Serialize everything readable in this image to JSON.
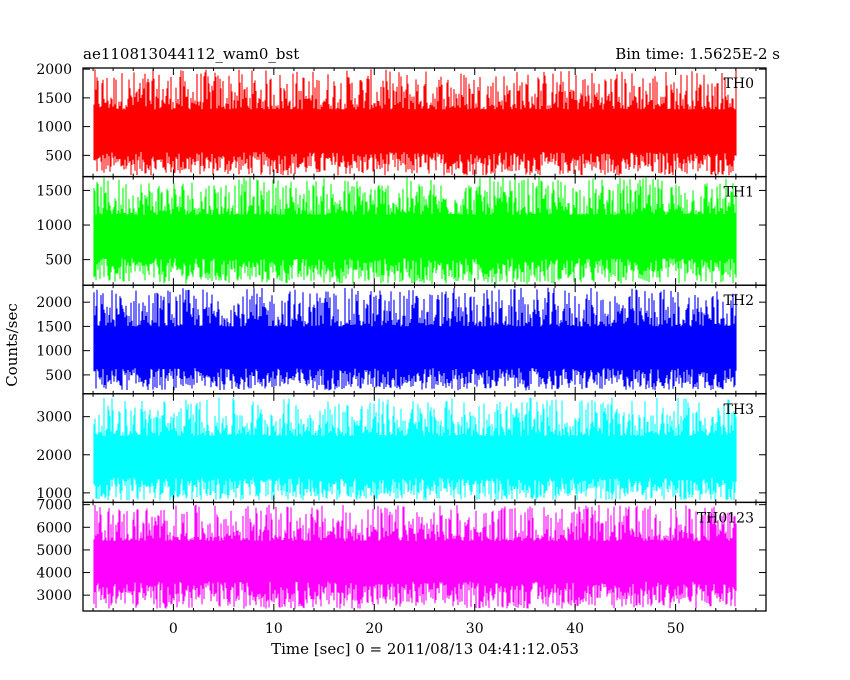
{
  "header": {
    "title": "ae110813044112_wam0_bst",
    "bin_time": "Bin time: 1.5625E-2 s"
  },
  "chart_data": {
    "type": "line",
    "xlabel": "Time [sec] 0 = 2011/08/13 04:41:12.053",
    "ylabel": "Counts/sec",
    "xlim": [
      -9,
      59
    ],
    "x_ticks": [
      0,
      10,
      20,
      30,
      40,
      50
    ],
    "x_range_data": [
      -7.9,
      56.0
    ],
    "series": [
      {
        "name": "TH0",
        "color": "#ff0000",
        "ylim": [
          130,
          2020
        ],
        "y_ticks": [
          500,
          1000,
          1500,
          2000
        ],
        "baseline": 850,
        "low": [
          150,
          560
        ],
        "high": [
          1300,
          2000
        ]
      },
      {
        "name": "TH1",
        "color": "#00ff00",
        "ylim": [
          130,
          1700
        ],
        "y_ticks": [
          500,
          1000,
          1500
        ],
        "baseline": 780,
        "low": [
          150,
          520
        ],
        "high": [
          1150,
          1690
        ]
      },
      {
        "name": "TH2",
        "color": "#0000ff",
        "ylim": [
          110,
          2350
        ],
        "y_ticks": [
          500,
          1000,
          1500,
          2000
        ],
        "baseline": 1050,
        "low": [
          180,
          640
        ],
        "high": [
          1500,
          2300
        ]
      },
      {
        "name": "TH3",
        "color": "#00ffff",
        "ylim": [
          750,
          3600
        ],
        "y_ticks": [
          1000,
          2000,
          3000
        ],
        "baseline": 1900,
        "low": [
          800,
          1400
        ],
        "high": [
          2500,
          3500
        ]
      },
      {
        "name": "TH0123",
        "color": "#ff00ff",
        "ylim": [
          2300,
          7100
        ],
        "y_ticks": [
          3000,
          4000,
          5000,
          6000,
          7000
        ],
        "baseline": 4400,
        "low": [
          2400,
          3600
        ],
        "high": [
          5400,
          7000
        ]
      }
    ]
  }
}
